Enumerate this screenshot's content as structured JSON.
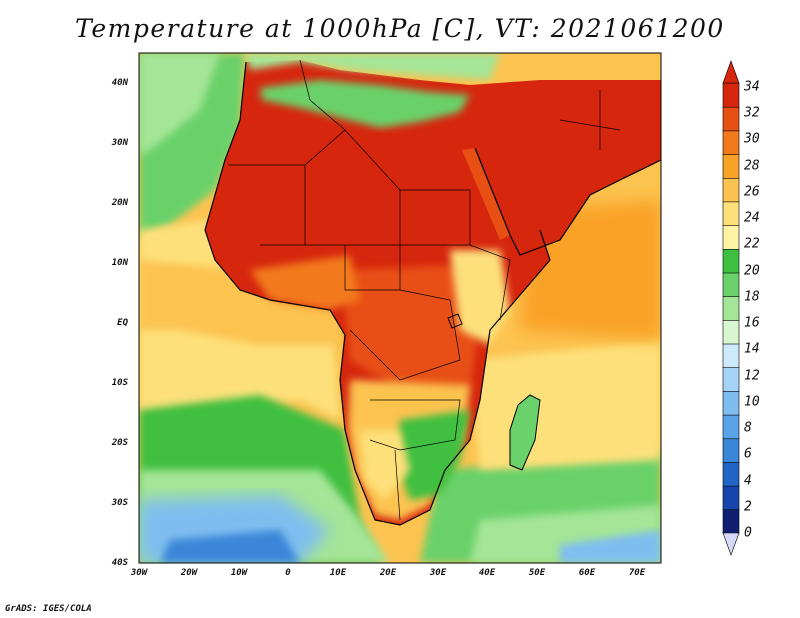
{
  "title": "Temperature at 1000hPa [C], VT: 2021061200",
  "footer": "GrADS: IGES/COLA",
  "map": {
    "lon_range": [
      -30,
      75
    ],
    "lat_range": [
      -40,
      45
    ],
    "lat_labels": [
      "40N",
      "30N",
      "20N",
      "10N",
      "EQ",
      "10S",
      "20S",
      "30S",
      "40S"
    ],
    "lon_labels": [
      "30W",
      "20W",
      "10W",
      "0",
      "10E",
      "20E",
      "30E",
      "40E",
      "50E",
      "60E",
      "70E"
    ],
    "regions": [
      {
        "name": "sahara-hot",
        "level": 33
      },
      {
        "name": "arabia-hot",
        "level": 33
      },
      {
        "name": "central-africa-warm",
        "level": 31
      },
      {
        "name": "atlantic-tropics",
        "level": 26
      },
      {
        "name": "indian-ocean",
        "level": 27
      },
      {
        "name": "southern-africa",
        "level": 22
      },
      {
        "name": "south-atlantic-cool",
        "level": 18
      },
      {
        "name": "southern-ocean-cold",
        "level": 12
      },
      {
        "name": "mediterranean",
        "level": 21
      }
    ]
  },
  "colorbar": {
    "labels": [
      "34",
      "32",
      "30",
      "28",
      "26",
      "24",
      "22",
      "20",
      "18",
      "16",
      "14",
      "12",
      "10",
      "8",
      "6",
      "4",
      "2",
      "0"
    ],
    "colors": [
      "#111f72",
      "#1646ad",
      "#2166c6",
      "#3a86d8",
      "#5aa3e8",
      "#7fbdf0",
      "#a6d4f6",
      "#cdeafb",
      "#d8f6d0",
      "#a4e597",
      "#6bd16a",
      "#3fbf3f",
      "#fff3a6",
      "#fde07a",
      "#fcc350",
      "#f9a228",
      "#f37a1b",
      "#e84f12",
      "#d6260e"
    ]
  }
}
